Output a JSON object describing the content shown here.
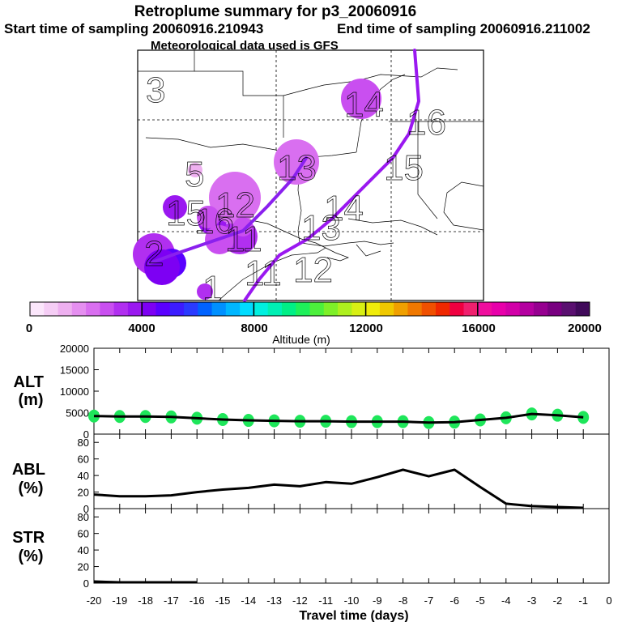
{
  "header": {
    "title": "Retroplume summary for p3_20060916",
    "start_label": "Start time of sampling 20060916.210943",
    "end_label": "End time of sampling 20060916.211002",
    "met_label": "Meteorological data used is GFS"
  },
  "colorbar": {
    "tick_labels": [
      "0",
      "4000",
      "8000",
      "12000",
      "16000",
      "20000"
    ],
    "title": "Altitude (m)",
    "min": 0,
    "max": 20000,
    "colors": [
      "#fbe6fb",
      "#f5cdf5",
      "#eeb0f0",
      "#e58ff0",
      "#d96ff0",
      "#c94ff0",
      "#b12ff0",
      "#9a18f0",
      "#7d00f3",
      "#5a00ff",
      "#3c1cff",
      "#2a3aff",
      "#0062ff",
      "#0090ff",
      "#00b6ff",
      "#00dcff",
      "#00f0e0",
      "#00f0b4",
      "#00ef86",
      "#1ef05a",
      "#4cf03c",
      "#7ef028",
      "#aef01e",
      "#d8f014",
      "#f0ec0a",
      "#f0c800",
      "#f0a000",
      "#f07800",
      "#f05000",
      "#f02800",
      "#f00040",
      "#f0206e",
      "#f00e9e",
      "#e800aa",
      "#d200a8",
      "#b400a0",
      "#960090",
      "#780080",
      "#5a1070",
      "#400a5a"
    ]
  },
  "map": {
    "points": [
      {
        "label": "1",
        "alt": 3000
      },
      {
        "label": "2",
        "alt": 3400
      },
      {
        "label": "3",
        "alt": 4600
      },
      {
        "label": "4",
        "alt": 4000
      },
      {
        "label": "5",
        "alt": 1200
      },
      {
        "label": "6",
        "alt": 3800
      },
      {
        "label": "7",
        "alt": 3900
      },
      {
        "label": "8",
        "alt": 3600
      },
      {
        "label": "9",
        "alt": 3300
      },
      {
        "label": "10",
        "alt": 2900
      },
      {
        "label": "11",
        "alt": 2600
      },
      {
        "label": "12",
        "alt": 2300
      },
      {
        "label": "13",
        "alt": 2000
      },
      {
        "label": "14",
        "alt": 2500
      },
      {
        "label": "15",
        "alt": 2800
      },
      {
        "label": "16",
        "alt": 2700
      }
    ]
  },
  "chart_data": [
    {
      "type": "scatter",
      "name": "ALT",
      "ylabel": "ALT\n(m)",
      "ylim": [
        0,
        20000
      ],
      "yticks": [
        0,
        5000,
        10000,
        15000,
        20000
      ],
      "x": [
        -20,
        -19,
        -18,
        -17,
        -16,
        -15,
        -14,
        -13,
        -12,
        -11,
        -10,
        -9,
        -8,
        -7,
        -6,
        -5,
        -4,
        -3,
        -2,
        -1
      ],
      "values": [
        4200,
        4100,
        4100,
        4000,
        3700,
        3400,
        3200,
        3100,
        3000,
        3000,
        2900,
        2900,
        2900,
        2700,
        2800,
        3300,
        3800,
        4700,
        4400,
        3900
      ],
      "point_color": "#1ee65a"
    },
    {
      "type": "line",
      "name": "ABL",
      "ylabel": "ABL\n(%)",
      "ylim": [
        0,
        90
      ],
      "yticks": [
        0,
        20,
        40,
        60,
        80
      ],
      "x": [
        -20,
        -19,
        -18,
        -17,
        -16,
        -15,
        -14,
        -13,
        -12,
        -11,
        -10,
        -9,
        -8,
        -7,
        -6,
        -5,
        -4,
        -3,
        -2,
        -1
      ],
      "values": [
        17,
        15,
        15,
        16,
        20,
        23,
        25,
        29,
        27,
        32,
        30,
        38,
        47,
        39,
        47,
        26,
        6,
        3,
        2,
        1
      ]
    },
    {
      "type": "line",
      "name": "STR",
      "ylabel": "STR\n(%)",
      "ylim": [
        0,
        90
      ],
      "yticks": [
        0,
        20,
        40,
        60,
        80
      ],
      "x": [
        -20,
        -19,
        -18,
        -17,
        -16
      ],
      "values": [
        2,
        1,
        1,
        1,
        1
      ]
    }
  ],
  "xaxis": {
    "label": "Travel time (days)",
    "ticks": [
      -20,
      -19,
      -18,
      -17,
      -16,
      -15,
      -14,
      -13,
      -12,
      -11,
      -10,
      -9,
      -8,
      -7,
      -6,
      -5,
      -4,
      -3,
      -2,
      -1,
      0
    ],
    "tick_labels": [
      "-20",
      "-19",
      "-18",
      "-17",
      "-16",
      "-15",
      "-14",
      "-13",
      "-12",
      "-11",
      "-10",
      "-9",
      "-8",
      "-7",
      "-6",
      "-5",
      "-4",
      "-3",
      "-2",
      "-1",
      "0"
    ]
  }
}
